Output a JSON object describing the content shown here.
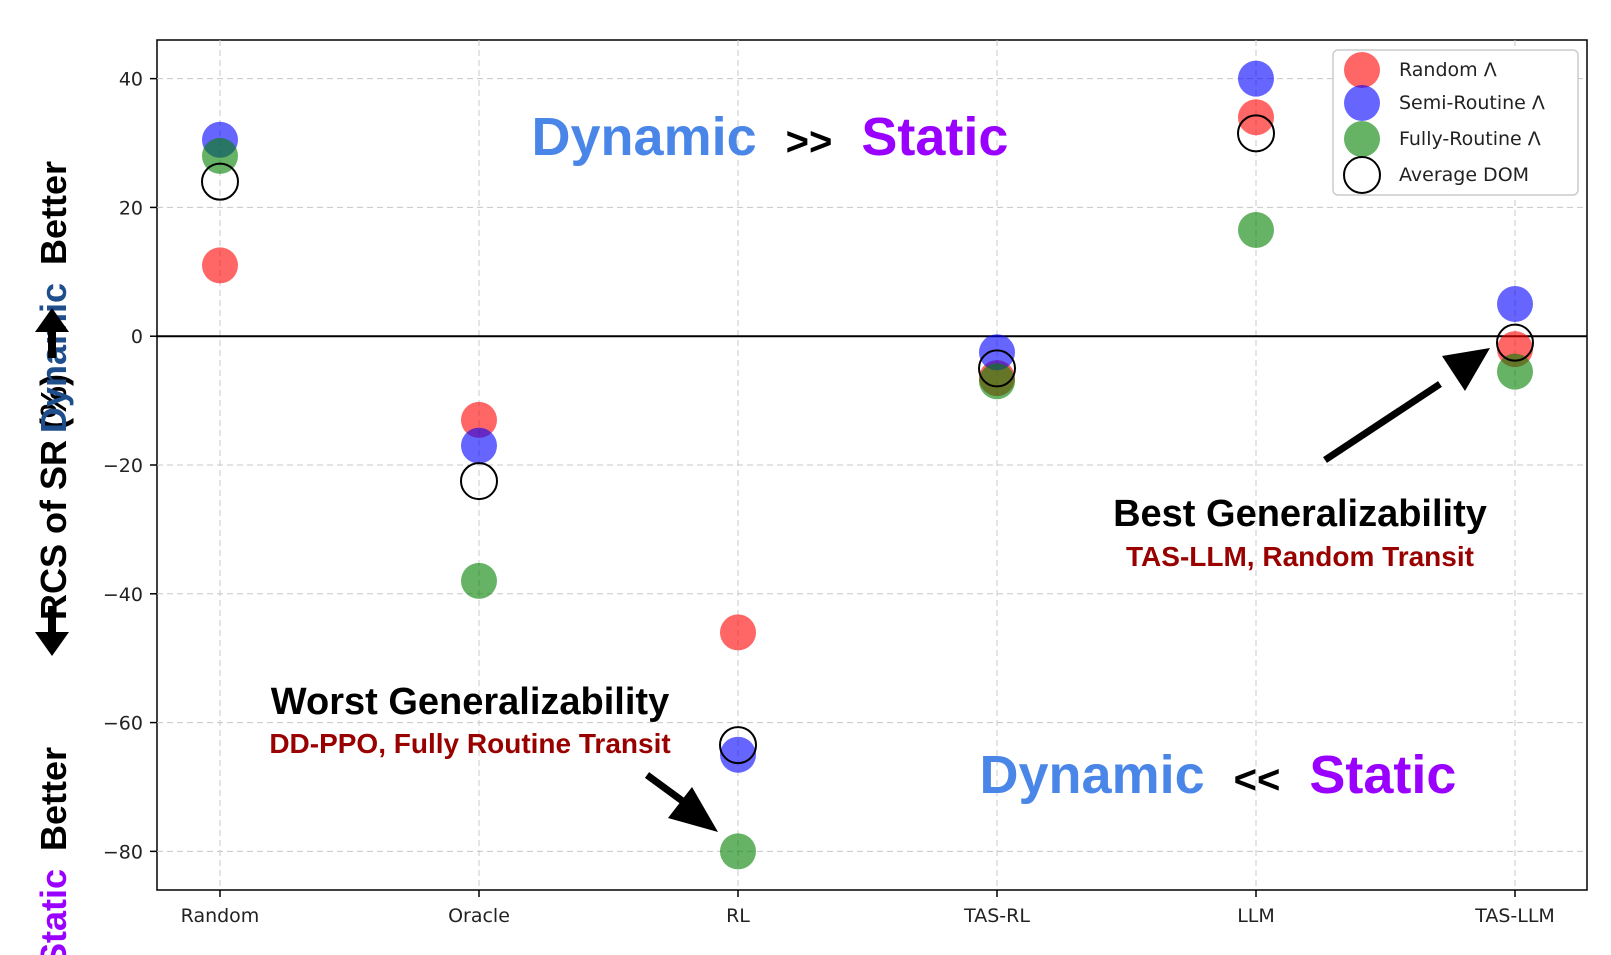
{
  "chart_data": {
    "type": "scatter",
    "categories": [
      "Random",
      "Oracle",
      "RL",
      "TAS-RL",
      "LLM",
      "TAS-LLM"
    ],
    "series": [
      {
        "name": "Random Λ",
        "color": "#ff0000",
        "marker": "filled",
        "values": [
          11,
          -13,
          -46,
          -6.5,
          34,
          -2
        ]
      },
      {
        "name": "Semi-Routine Λ",
        "color": "#0000ff",
        "marker": "filled",
        "values": [
          30.5,
          -17,
          -65,
          -2.5,
          40,
          5
        ]
      },
      {
        "name": "Fully-Routine Λ",
        "color": "#008000",
        "marker": "filled",
        "values": [
          28,
          -38,
          -80,
          -7,
          16.5,
          -5.5
        ]
      },
      {
        "name": "Average DOM",
        "color": "#000000",
        "marker": "hollow",
        "values": [
          24,
          -22.5,
          -63.5,
          -5,
          31.5,
          -1
        ]
      }
    ],
    "ylim": [
      -86,
      46
    ],
    "yticks": [
      40,
      20,
      0,
      -20,
      -40,
      -60,
      -80
    ],
    "ytick_labels": [
      "40",
      "20",
      "0",
      "−20",
      "−40",
      "−60",
      "−80"
    ],
    "ylabel": {
      "top_word1": "Dynamic",
      "top_word2": "Better",
      "middle": "RCS of SR (%)",
      "bottom_word1": "Static",
      "bottom_word2": "Better"
    },
    "grid": true,
    "legend_position": "top-right",
    "reference_line_y": 0,
    "annotations": {
      "top_banner": {
        "left": "Dynamic",
        "op": ">>",
        "right": "Static"
      },
      "bottom_banner": {
        "left": "Dynamic",
        "op": "<<",
        "right": "Static"
      },
      "best": {
        "title": "Best Generalizability",
        "subtitle": "TAS-LLM, Random Transit",
        "target_category": "TAS-LLM",
        "target_value": -1
      },
      "worst": {
        "title": "Worst Generalizability",
        "subtitle": "DD-PPO, Fully Routine Transit",
        "target_category": "RL",
        "target_value": -80
      }
    },
    "colors": {
      "dynamic": "#4a86e8",
      "static": "#9900ff",
      "dynamic_label": "#1f4e8c",
      "subtitle": "#990000"
    }
  }
}
